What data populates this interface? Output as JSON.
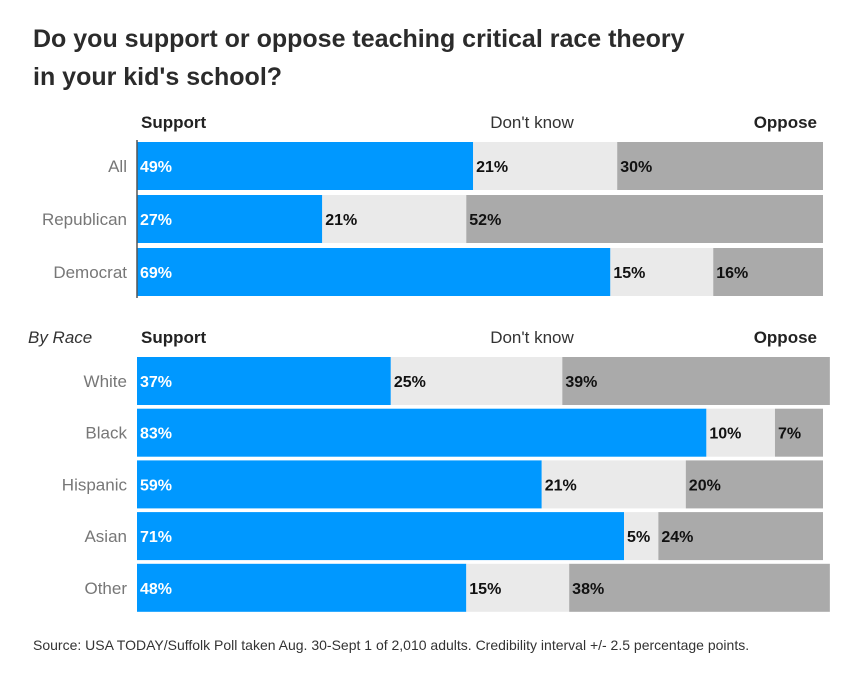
{
  "title": {
    "line1": "Do you support or oppose teaching critical race theory",
    "line2": "in your kid's school?"
  },
  "legend": {
    "support": "Support",
    "dont_know": "Don't know",
    "oppose": "Oppose"
  },
  "colors": {
    "support": "#0098ff",
    "dont_know": "#eaeaea",
    "oppose": "#aaaaaa",
    "category_label": "#777777"
  },
  "chart_data": [
    {
      "type": "bar",
      "orientation": "horizontal",
      "stacked": true,
      "group_label": "",
      "categories": [
        "All",
        "Republican",
        "Democrat"
      ],
      "series": [
        {
          "name": "Support",
          "values": [
            49,
            27,
            69
          ]
        },
        {
          "name": "Don't know",
          "values": [
            21,
            21,
            15
          ]
        },
        {
          "name": "Oppose",
          "values": [
            30,
            52,
            16
          ]
        }
      ],
      "value_suffix": "%",
      "xlim": [
        0,
        100
      ]
    },
    {
      "type": "bar",
      "orientation": "horizontal",
      "stacked": true,
      "group_label": "By Race",
      "categories": [
        "White",
        "Black",
        "Hispanic",
        "Asian",
        "Other"
      ],
      "series": [
        {
          "name": "Support",
          "values": [
            37,
            83,
            59,
            71,
            48
          ]
        },
        {
          "name": "Don't know",
          "values": [
            25,
            10,
            21,
            5,
            15
          ]
        },
        {
          "name": "Oppose",
          "values": [
            39,
            7,
            20,
            24,
            38
          ]
        }
      ],
      "value_suffix": "%",
      "xlim": [
        0,
        100
      ]
    }
  ],
  "source": "Source: USA TODAY/Suffolk Poll taken Aug. 30-Sept 1 of 2,010 adults. Credibility interval +/- 2.5 percentage points."
}
